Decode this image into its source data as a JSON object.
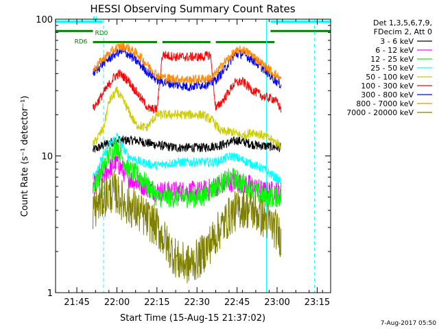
{
  "chart_data": {
    "type": "line",
    "title": "HESSI Observing Summary Count Rates",
    "xlabel": "Start Time (15-Aug-15 21:37:02)",
    "ylabel": "Count Rate (s⁻¹ detector⁻¹)",
    "ylog": true,
    "ylim": [
      1,
      100
    ],
    "xlim_minutes": [
      0,
      103
    ],
    "x_ticks": [
      {
        "label": "21:45",
        "t": 7.97
      },
      {
        "label": "22:00",
        "t": 22.97
      },
      {
        "label": "22:15",
        "t": 37.97
      },
      {
        "label": "22:30",
        "t": 52.97
      },
      {
        "label": "22:45",
        "t": 67.97
      },
      {
        "label": "23:00",
        "t": 82.97
      },
      {
        "label": "23:15",
        "t": 97.97
      }
    ],
    "y_ticks": [
      {
        "label": "1",
        "v": 1
      },
      {
        "label": "10",
        "v": 10
      },
      {
        "label": "100",
        "v": 100
      }
    ],
    "legend": {
      "position": "right",
      "header": [
        "Det 1,3,5,6,7,9,",
        "FDecim 2, Att 0"
      ],
      "entries": [
        {
          "label": "3 - 6 keV",
          "color": "#000000"
        },
        {
          "label": "6 - 12 keV",
          "color": "#ff00ff"
        },
        {
          "label": "12 - 25 keV",
          "color": "#00ff00"
        },
        {
          "label": "25 - 50 keV",
          "color": "#00ffff"
        },
        {
          "label": "50 - 100 keV",
          "color": "#cccc00"
        },
        {
          "label": "100 - 300 keV",
          "color": "#ff0000"
        },
        {
          "label": "300 - 800 keV",
          "color": "#0000ff"
        },
        {
          "label": "800 - 7000 keV",
          "color": "#ff8800"
        },
        {
          "label": "7000 - 20000 keV",
          "color": "#808000"
        }
      ]
    },
    "flags": [
      {
        "label": "N",
        "color": "#00ffff",
        "segments": [
          [
            0,
            17.5
          ],
          [
            80.5,
            103
          ]
        ],
        "level": 96
      },
      {
        "label": "RD0",
        "color": "#008000",
        "segments": [
          [
            0,
            14
          ],
          [
            80.5,
            103
          ]
        ],
        "level": 82
      },
      {
        "label": "RD6",
        "color": "#008000",
        "segments": [
          [
            14,
            38
          ],
          [
            40,
            58
          ],
          [
            60,
            82
          ]
        ],
        "level": 68
      }
    ],
    "vlines": [
      {
        "t": 18,
        "color": "#00ffff",
        "style": "dashed"
      },
      {
        "t": 79,
        "color": "#00ffff",
        "style": "solid"
      },
      {
        "t": 97,
        "color": "#00ffff",
        "style": "dashed"
      }
    ],
    "time_range_minutes": [
      14,
      84.5
    ],
    "series": [
      {
        "name": "3 - 6 keV",
        "color": "#000000",
        "points": [
          [
            14,
            11
          ],
          [
            20,
            12.5
          ],
          [
            24,
            13
          ],
          [
            30,
            13
          ],
          [
            38,
            12
          ],
          [
            45,
            11.5
          ],
          [
            55,
            11.5
          ],
          [
            62,
            12
          ],
          [
            68,
            13
          ],
          [
            75,
            12
          ],
          [
            84.5,
            11.5
          ]
        ]
      },
      {
        "name": "6 - 12 keV",
        "color": "#ff00ff",
        "points": [
          [
            14,
            6
          ],
          [
            20,
            8
          ],
          [
            23,
            9
          ],
          [
            27,
            7
          ],
          [
            32,
            6.2
          ],
          [
            38,
            5.5
          ],
          [
            45,
            5.5
          ],
          [
            55,
            5.5
          ],
          [
            60,
            6
          ],
          [
            66,
            6.5
          ],
          [
            72,
            6.2
          ],
          [
            78,
            5.5
          ],
          [
            84.5,
            5.5
          ]
        ]
      },
      {
        "name": "12 - 25 keV",
        "color": "#00ff00",
        "points": [
          [
            14,
            6
          ],
          [
            20,
            10
          ],
          [
            23,
            12
          ],
          [
            27,
            8
          ],
          [
            32,
            7
          ],
          [
            38,
            5
          ],
          [
            45,
            5
          ],
          [
            55,
            5
          ],
          [
            60,
            6
          ],
          [
            66,
            7
          ],
          [
            72,
            6
          ],
          [
            78,
            5
          ],
          [
            84.5,
            5
          ]
        ]
      },
      {
        "name": "25 - 50 keV",
        "color": "#00ffff",
        "points": [
          [
            14,
            7
          ],
          [
            20,
            12
          ],
          [
            23,
            14
          ],
          [
            27,
            10
          ],
          [
            32,
            9
          ],
          [
            38,
            8.5
          ],
          [
            45,
            9
          ],
          [
            55,
            9
          ],
          [
            60,
            9
          ],
          [
            66,
            10
          ],
          [
            72,
            9
          ],
          [
            78,
            8
          ],
          [
            84.5,
            6.5
          ]
        ]
      },
      {
        "name": "50 - 100 keV",
        "color": "#cccc00",
        "points": [
          [
            14,
            12
          ],
          [
            18,
            16
          ],
          [
            20,
            25
          ],
          [
            23,
            30
          ],
          [
            26,
            24
          ],
          [
            30,
            17
          ],
          [
            34,
            16
          ],
          [
            38,
            20
          ],
          [
            45,
            20
          ],
          [
            55,
            20
          ],
          [
            59,
            18
          ],
          [
            62,
            15
          ],
          [
            66,
            15
          ],
          [
            70,
            14
          ],
          [
            74,
            15
          ],
          [
            78,
            14
          ],
          [
            84.5,
            12
          ]
        ]
      },
      {
        "name": "100 - 300 keV",
        "color": "#ff0000",
        "points": [
          [
            14,
            22
          ],
          [
            18,
            29
          ],
          [
            22,
            38
          ],
          [
            24,
            40
          ],
          [
            27,
            36
          ],
          [
            31,
            28
          ],
          [
            35,
            22
          ],
          [
            38,
            22
          ],
          [
            40,
            55
          ],
          [
            45,
            53
          ],
          [
            55,
            53
          ],
          [
            58,
            55
          ],
          [
            60,
            22
          ],
          [
            63,
            26
          ],
          [
            67,
            34
          ],
          [
            70,
            35
          ],
          [
            74,
            30
          ],
          [
            78,
            27
          ],
          [
            82,
            26
          ],
          [
            84.5,
            22
          ]
        ]
      },
      {
        "name": "300 - 800 keV",
        "color": "#0000ff",
        "points": [
          [
            14,
            40
          ],
          [
            18,
            48
          ],
          [
            22,
            55
          ],
          [
            24,
            58
          ],
          [
            27,
            56
          ],
          [
            31,
            48
          ],
          [
            35,
            40
          ],
          [
            38,
            36
          ],
          [
            42,
            34
          ],
          [
            50,
            32
          ],
          [
            58,
            34
          ],
          [
            60,
            36
          ],
          [
            63,
            42
          ],
          [
            67,
            55
          ],
          [
            70,
            56
          ],
          [
            74,
            50
          ],
          [
            78,
            43
          ],
          [
            82,
            36
          ],
          [
            84.5,
            33
          ]
        ]
      },
      {
        "name": "800 - 7000 keV",
        "color": "#ff8800",
        "points": [
          [
            14,
            42
          ],
          [
            18,
            52
          ],
          [
            22,
            60
          ],
          [
            24,
            63
          ],
          [
            27,
            62
          ],
          [
            31,
            55
          ],
          [
            35,
            45
          ],
          [
            38,
            39
          ],
          [
            42,
            37
          ],
          [
            50,
            36
          ],
          [
            58,
            37
          ],
          [
            60,
            40
          ],
          [
            63,
            48
          ],
          [
            67,
            57
          ],
          [
            70,
            60
          ],
          [
            74,
            54
          ],
          [
            78,
            46
          ],
          [
            82,
            40
          ],
          [
            84.5,
            36
          ]
        ]
      },
      {
        "name": "7000 - 20000 keV",
        "color": "#808000",
        "points": [
          [
            14,
            4
          ],
          [
            18,
            5
          ],
          [
            22,
            5.5
          ],
          [
            26,
            4.5
          ],
          [
            30,
            4
          ],
          [
            34,
            3.5
          ],
          [
            38,
            3
          ],
          [
            42,
            2.2
          ],
          [
            46,
            1.7
          ],
          [
            50,
            1.6
          ],
          [
            54,
            1.8
          ],
          [
            58,
            2.3
          ],
          [
            62,
            3
          ],
          [
            66,
            3.8
          ],
          [
            70,
            4.2
          ],
          [
            74,
            4
          ],
          [
            78,
            3.5
          ],
          [
            82,
            3
          ],
          [
            84.5,
            2.5
          ]
        ]
      }
    ]
  },
  "footer": {
    "date_stamp": "7-Aug-2017 05:50"
  }
}
